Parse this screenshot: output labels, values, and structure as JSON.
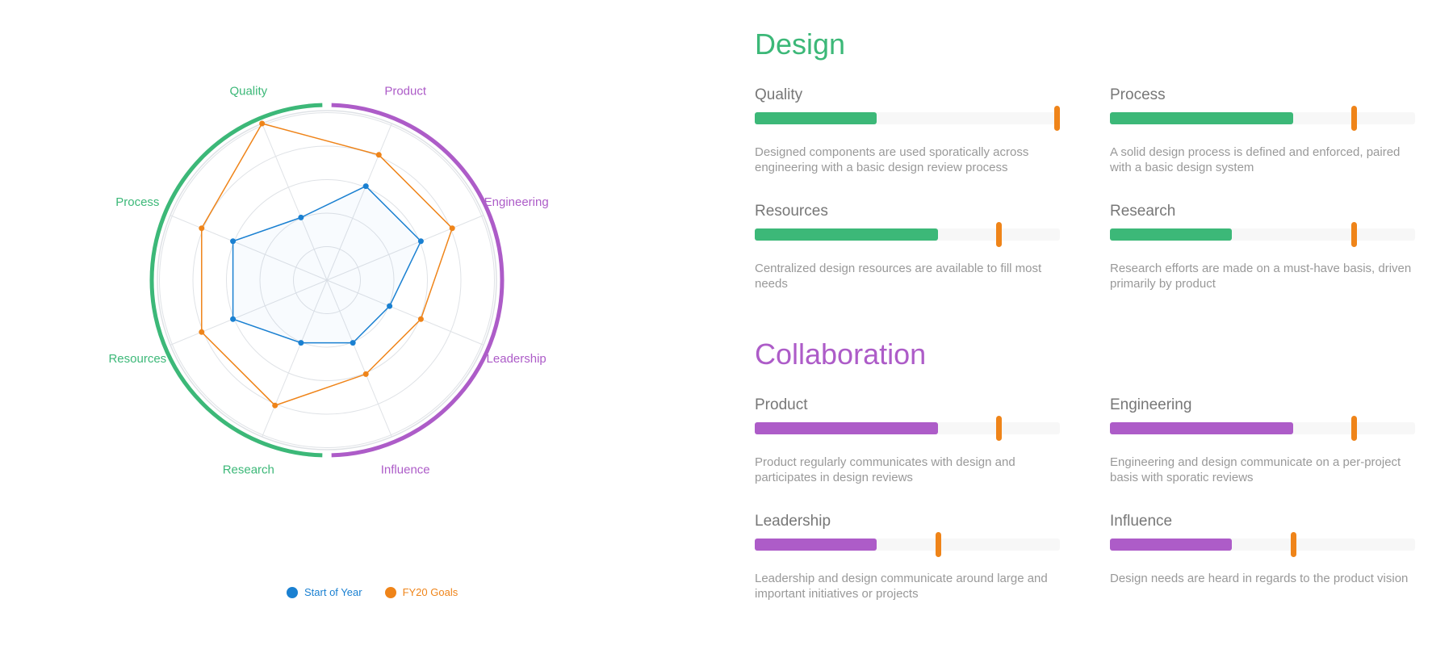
{
  "colors": {
    "design": "#3cb878",
    "collaboration": "#ad5cc8",
    "start_series": "#1a80d1",
    "goal_series": "#ef8419",
    "grid": "#dfe2e6",
    "description_text": "#999999"
  },
  "chart_data": {
    "type": "radar",
    "axes": [
      "Quality",
      "Product",
      "Engineering",
      "Leadership",
      "Influence",
      "Research",
      "Resources",
      "Process"
    ],
    "axis_groups": [
      {
        "name": "Design",
        "axes": [
          "Process",
          "Resources",
          "Research",
          "Quality"
        ]
      },
      {
        "name": "Collaboration",
        "axes": [
          "Product",
          "Engineering",
          "Leadership",
          "Influence"
        ]
      }
    ],
    "range": [
      0,
      5
    ],
    "grid_rings": 5,
    "series": [
      {
        "name": "Start of Year",
        "values": [
          2,
          3,
          3,
          2,
          2,
          2,
          3,
          3
        ]
      },
      {
        "name": "FY20 Goals",
        "values": [
          5,
          4,
          4,
          3,
          3,
          4,
          4,
          4
        ]
      }
    ],
    "legend_position": "bottom"
  },
  "legend": [
    {
      "label": "Start of Year",
      "color": "#1a80d1"
    },
    {
      "label": "FY20 Goals",
      "color": "#ef8419"
    }
  ],
  "sections": [
    {
      "title": "Design",
      "color": "#3cb878",
      "metrics": [
        {
          "name": "Quality",
          "current": 0.4,
          "goal": 1.0,
          "description": "Designed components are used sporatically across engineering with a basic design review process"
        },
        {
          "name": "Process",
          "current": 0.6,
          "goal": 0.8,
          "description": "A solid design process is defined and enforced, paired with a basic design system"
        },
        {
          "name": "Resources",
          "current": 0.6,
          "goal": 0.8,
          "description": "Centralized design resources are available to fill most needs"
        },
        {
          "name": "Research",
          "current": 0.4,
          "goal": 0.8,
          "description": "Research efforts are made on a must-have basis, driven primarily by product"
        }
      ]
    },
    {
      "title": "Collaboration",
      "color": "#ad5cc8",
      "metrics": [
        {
          "name": "Product",
          "current": 0.6,
          "goal": 0.8,
          "description": "Product regularly communicates with design and participates in design reviews"
        },
        {
          "name": "Engineering",
          "current": 0.6,
          "goal": 0.8,
          "description": "Engineering and design communicate on a per-project basis with sporatic reviews"
        },
        {
          "name": "Leadership",
          "current": 0.4,
          "goal": 0.6,
          "description": "Leadership and design communicate around large and important initiatives or projects"
        },
        {
          "name": "Influence",
          "current": 0.4,
          "goal": 0.6,
          "description": "Design needs are heard in regards to the product vision"
        }
      ]
    }
  ]
}
